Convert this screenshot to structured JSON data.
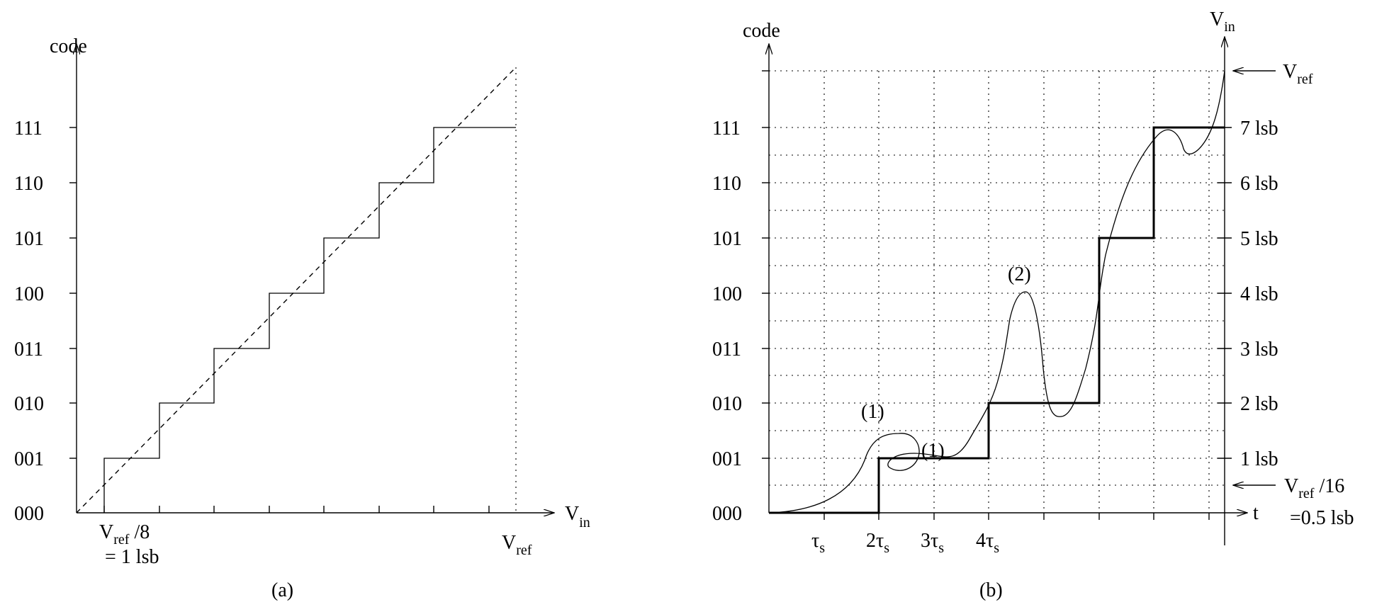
{
  "panel_a": {
    "y_axis_label": "code",
    "x_axis_label_main": "V",
    "x_axis_label_sub": "in",
    "codes": [
      "000",
      "001",
      "010",
      "011",
      "100",
      "101",
      "110",
      "111"
    ],
    "x_tick_label_main": "V",
    "x_tick_label_sub": "ref",
    "x_tick_label_tail": " /8",
    "x_tick_label_line2": "= 1 lsb",
    "x_end_label_main": "V",
    "x_end_label_sub": "ref",
    "caption": "(a)"
  },
  "panel_b": {
    "y_axis_label": "code",
    "right_axis_label_main": "V",
    "right_axis_label_sub": "in",
    "codes": [
      "000",
      "001",
      "010",
      "011",
      "100",
      "101",
      "110",
      "111"
    ],
    "lsb_labels": [
      "1 lsb",
      "2 lsb",
      "3 lsb",
      "4 lsb",
      "5 lsb",
      "6 lsb",
      "7 lsb"
    ],
    "vref_label_main": "V",
    "vref_label_sub": "ref",
    "half_lsb_label_main": "V",
    "half_lsb_label_sub": "ref",
    "half_lsb_label_tail": " /16",
    "half_lsb_label_line2": "=0.5 lsb",
    "t_axis_label": "t",
    "time_ticks": [
      {
        "pre": "",
        "sym": "τ",
        "sub": "s"
      },
      {
        "pre": "2",
        "sym": "τ",
        "sub": "s"
      },
      {
        "pre": "3",
        "sym": "τ",
        "sub": "s"
      },
      {
        "pre": "4",
        "sym": "τ",
        "sub": "s"
      }
    ],
    "annotations": [
      "(1)",
      "(1)",
      "(2)"
    ],
    "caption": "(b)"
  }
}
